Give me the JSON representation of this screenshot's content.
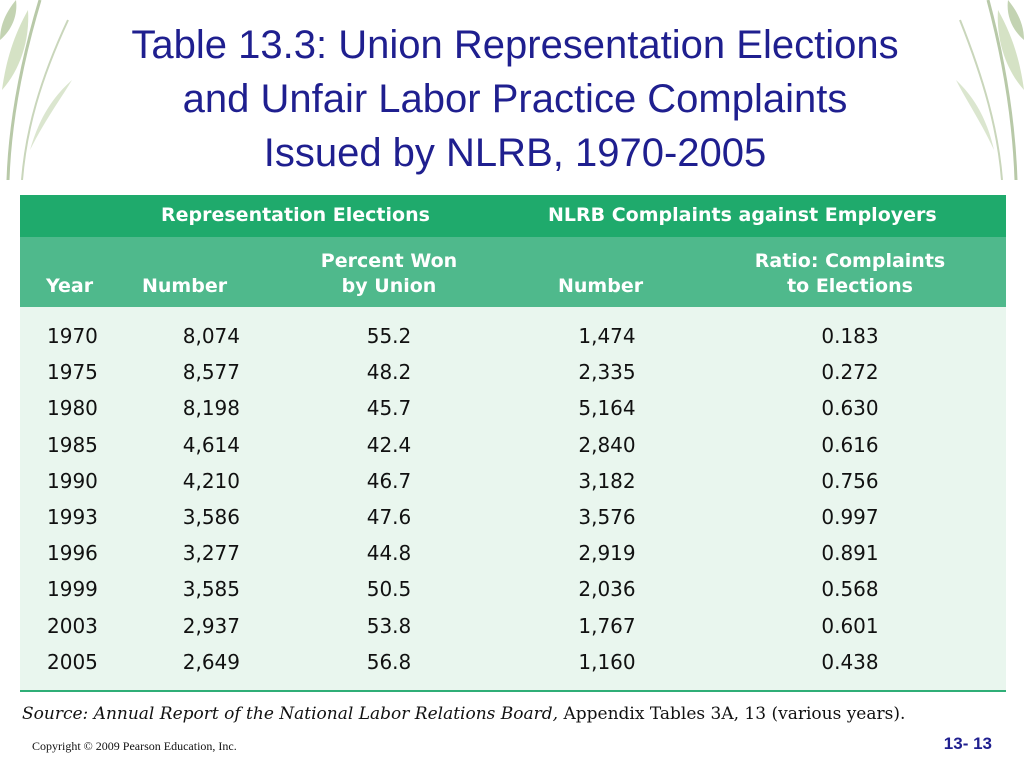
{
  "title": {
    "line1": "Table 13.3: Union Representation Elections",
    "line2": "and Unfair Labor Practice Complaints",
    "line3": "Issued by NLRB, 1970-2005"
  },
  "table": {
    "group_headers": {
      "elections": "Representation Elections",
      "complaints": "NLRB Complaints against Employers"
    },
    "columns": {
      "year": "Year",
      "elections_number": "Number",
      "percent_won_1": "Percent Won",
      "percent_won_2": "by Union",
      "complaints_number": "Number",
      "ratio_1": "Ratio: Complaints",
      "ratio_2": "to Elections"
    },
    "rows": [
      {
        "year": "1970",
        "number": "8,074",
        "percent": "55.2",
        "complaints": "1,474",
        "ratio": "0.183"
      },
      {
        "year": "1975",
        "number": "8,577",
        "percent": "48.2",
        "complaints": "2,335",
        "ratio": "0.272"
      },
      {
        "year": "1980",
        "number": "8,198",
        "percent": "45.7",
        "complaints": "5,164",
        "ratio": "0.630"
      },
      {
        "year": "1985",
        "number": "4,614",
        "percent": "42.4",
        "complaints": "2,840",
        "ratio": "0.616"
      },
      {
        "year": "1990",
        "number": "4,210",
        "percent": "46.7",
        "complaints": "3,182",
        "ratio": "0.756"
      },
      {
        "year": "1993",
        "number": "3,586",
        "percent": "47.6",
        "complaints": "3,576",
        "ratio": "0.997"
      },
      {
        "year": "1996",
        "number": "3,277",
        "percent": "44.8",
        "complaints": "2,919",
        "ratio": "0.891"
      },
      {
        "year": "1999",
        "number": "3,585",
        "percent": "50.5",
        "complaints": "2,036",
        "ratio": "0.568"
      },
      {
        "year": "2003",
        "number": "2,937",
        "percent": "53.8",
        "complaints": "1,767",
        "ratio": "0.601"
      },
      {
        "year": "2005",
        "number": "2,649",
        "percent": "56.8",
        "complaints": "1,160",
        "ratio": "0.438"
      }
    ]
  },
  "source": {
    "label": "Source: Annual Report of the National Labor Relations Board,",
    "rest": " Appendix Tables 3A, 13 (various years)."
  },
  "footer": {
    "copyright": "Copyright © 2009 Pearson Education, Inc.",
    "page": "13- 13"
  },
  "colors": {
    "title": "#1f1f8f",
    "header_band": "#1faa6c",
    "subheader_band": "#4fb98c",
    "table_body": "#e9f6ee"
  }
}
